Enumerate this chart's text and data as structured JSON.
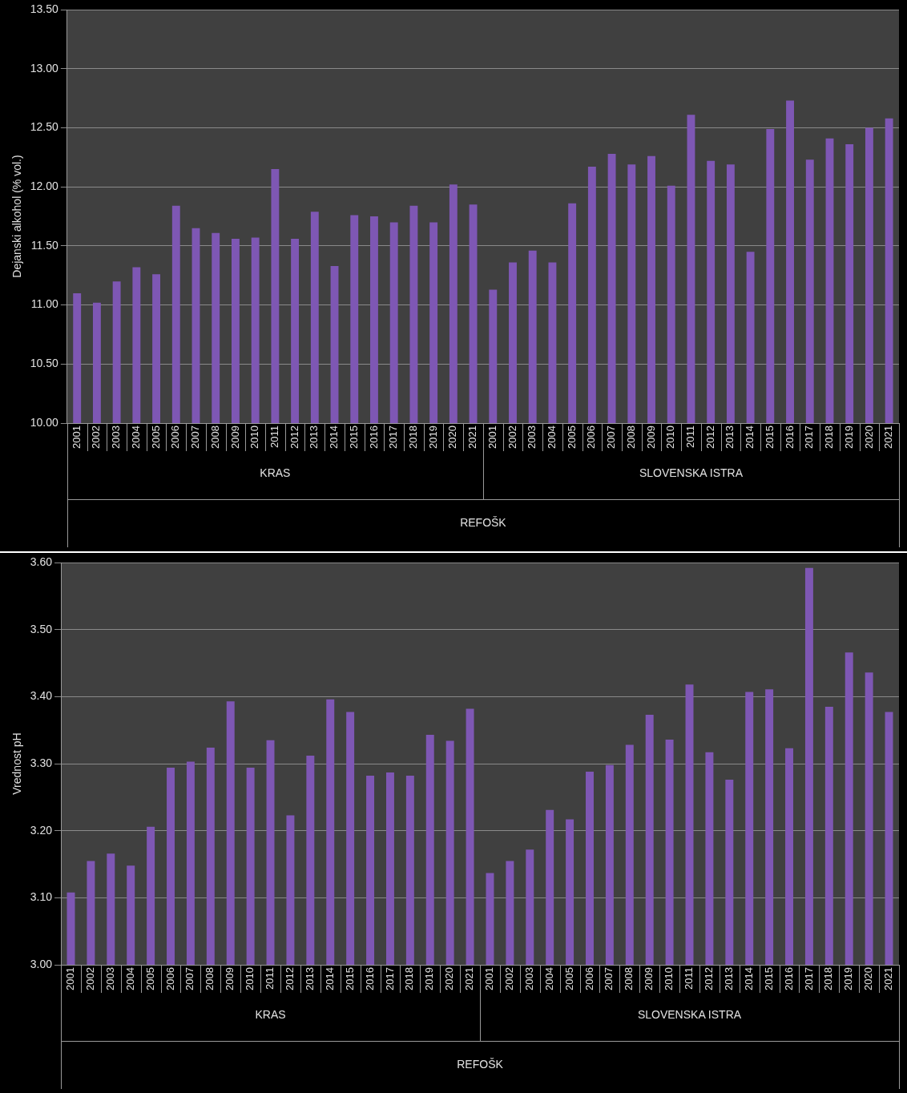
{
  "chart_data": [
    {
      "type": "bar",
      "ylabel": "Dejanski alkohol (% vol.)",
      "categories": [
        "2001",
        "2002",
        "2003",
        "2004",
        "2005",
        "2006",
        "2007",
        "2008",
        "2009",
        "2010",
        "2011",
        "2012",
        "2013",
        "2014",
        "2015",
        "2016",
        "2017",
        "2018",
        "2019",
        "2020",
        "2021",
        "2001",
        "2002",
        "2003",
        "2004",
        "2005",
        "2006",
        "2007",
        "2008",
        "2009",
        "2010",
        "2011",
        "2012",
        "2013",
        "2014",
        "2015",
        "2016",
        "2017",
        "2018",
        "2019",
        "2020",
        "2021"
      ],
      "values": [
        11.1,
        11.02,
        11.2,
        11.32,
        11.26,
        11.84,
        11.65,
        11.61,
        11.56,
        11.57,
        12.15,
        11.56,
        11.79,
        11.33,
        11.76,
        11.75,
        11.7,
        11.84,
        11.7,
        12.02,
        11.85,
        11.13,
        11.36,
        11.46,
        11.36,
        11.86,
        12.17,
        12.28,
        12.19,
        12.26,
        12.01,
        12.61,
        12.22,
        12.19,
        11.45,
        12.49,
        12.73,
        12.23,
        12.41,
        12.36,
        12.5,
        12.58
      ],
      "color": "#7e57b4",
      "ylim": [
        10,
        13.5
      ],
      "yticks": [
        {
          "value": 10,
          "label": "10.00"
        },
        {
          "value": 10.5,
          "label": "10.50"
        },
        {
          "value": 11,
          "label": "11.00"
        },
        {
          "value": 11.5,
          "label": "11.50"
        },
        {
          "value": 12,
          "label": "12.00"
        },
        {
          "value": 12.5,
          "label": "12.50"
        },
        {
          "value": 13,
          "label": "13.00"
        },
        {
          "value": 13.5,
          "label": "13.50"
        }
      ],
      "grid": "y",
      "legend": false,
      "annotations": [
        "KRAS",
        "SLOVENSKA ISTRA",
        "REFOŠK"
      ]
    },
    {
      "type": "bar",
      "ylabel": "Vrednost pH",
      "categories": [
        "2001",
        "2002",
        "2003",
        "2004",
        "2005",
        "2006",
        "2007",
        "2008",
        "2009",
        "2010",
        "2011",
        "2012",
        "2013",
        "2014",
        "2015",
        "2016",
        "2017",
        "2018",
        "2019",
        "2020",
        "2021",
        "2001",
        "2002",
        "2003",
        "2004",
        "2005",
        "2006",
        "2007",
        "2008",
        "2009",
        "2010",
        "2011",
        "2012",
        "2013",
        "2014",
        "2015",
        "2016",
        "2017",
        "2018",
        "2019",
        "2020",
        "2021"
      ],
      "values": [
        3.108,
        3.155,
        3.166,
        3.148,
        3.206,
        3.294,
        3.303,
        3.324,
        3.393,
        3.294,
        3.335,
        3.223,
        3.312,
        3.396,
        3.377,
        3.282,
        3.287,
        3.282,
        3.343,
        3.334,
        3.382,
        3.137,
        3.155,
        3.172,
        3.231,
        3.217,
        3.288,
        3.298,
        3.328,
        3.373,
        3.336,
        3.418,
        3.317,
        3.276,
        3.407,
        3.411,
        3.323,
        3.592,
        3.385,
        3.466,
        3.436,
        3.377
      ],
      "color": "#7e57b4",
      "ylim": [
        3.0,
        3.6
      ],
      "yticks": [
        {
          "value": 3.0,
          "label": "3.00"
        },
        {
          "value": 3.1,
          "label": "3.10"
        },
        {
          "value": 3.2,
          "label": "3.20"
        },
        {
          "value": 3.3,
          "label": "3.30"
        },
        {
          "value": 3.4,
          "label": "3.40"
        },
        {
          "value": 3.5,
          "label": "3.50"
        },
        {
          "value": 3.6,
          "label": "3.60"
        }
      ],
      "grid": "y",
      "legend": false,
      "annotations": [
        "KRAS",
        "SLOVENSKA ISTRA",
        "REFOŠK"
      ]
    }
  ]
}
